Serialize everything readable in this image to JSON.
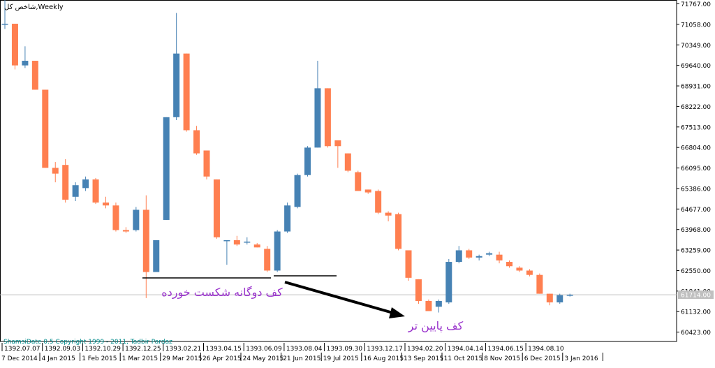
{
  "title": "شاخص کل,Weekly",
  "copyright": "ShamsiDate 0.5 Copyright 1999 - 2011, Tadbir Pardaz",
  "annotations": {
    "double_bottom": "کف دوگانه شکست خورده",
    "lower_bottom": "کف پایین تر"
  },
  "price_labels": [
    "71767.00",
    "71058.00",
    "70349.00",
    "69640.00",
    "68931.00",
    "68222.00",
    "67513.00",
    "66804.00",
    "66095.00",
    "65386.00",
    "64677.00",
    "63968.00",
    "63259.00",
    "62550.00",
    "61841.00",
    "61132.00",
    "60423.00"
  ],
  "current_price": "61714.00",
  "date_labels_top": [
    "1392.07.07",
    "1392.09.03",
    "1392.10.29",
    "1392.12.25",
    "1393.02.21",
    "1393.04.15",
    "1393.06.09",
    "1393.08.04",
    "1393.09.30",
    "1393.12.17",
    "1394.02.20",
    "1394.04.14",
    "1394.06.15",
    "1394.08.10"
  ],
  "date_labels_bottom": [
    "7 Dec 2014",
    "4 Jan 2015",
    "1 Feb 2015",
    "1 Mar 2015",
    "29 Mar 2015",
    "26 Apr 2015",
    "24 May 2015",
    "21 Jun 2015",
    "19 Jul 2015",
    "16 Aug 2015",
    "13 Sep 2015",
    "11 Oct 2015",
    "8 Nov 2015",
    "6 Dec 2015",
    "3 Jan 2016"
  ],
  "colors": {
    "up": "#4682B4",
    "down": "#FF7F50",
    "line": "#000000",
    "text_purple": "#9932CC",
    "copyright_teal": "#008B8B",
    "grid": "#c0c0c0"
  },
  "chart_data": {
    "type": "candlestick",
    "ylim": [
      60100,
      71900
    ],
    "candles": [
      {
        "o": 71080,
        "h": 71900,
        "l": 70900,
        "c": 71080
      },
      {
        "o": 71080,
        "h": 71080,
        "l": 69500,
        "c": 69640
      },
      {
        "o": 69640,
        "h": 70300,
        "l": 69550,
        "c": 69800
      },
      {
        "o": 69800,
        "h": 69800,
        "l": 68800,
        "c": 68800
      },
      {
        "o": 68800,
        "h": 68800,
        "l": 66100,
        "c": 66100
      },
      {
        "o": 66100,
        "h": 66300,
        "l": 65600,
        "c": 65900
      },
      {
        "o": 66200,
        "h": 66400,
        "l": 64900,
        "c": 65000
      },
      {
        "o": 65100,
        "h": 65600,
        "l": 64950,
        "c": 65500
      },
      {
        "o": 65400,
        "h": 65800,
        "l": 65300,
        "c": 65700
      },
      {
        "o": 65700,
        "h": 65750,
        "l": 64850,
        "c": 64900
      },
      {
        "o": 64900,
        "h": 65100,
        "l": 64700,
        "c": 64800
      },
      {
        "o": 64800,
        "h": 64900,
        "l": 63900,
        "c": 63950
      },
      {
        "o": 63950,
        "h": 64050,
        "l": 63850,
        "c": 63900
      },
      {
        "o": 63950,
        "h": 64750,
        "l": 63900,
        "c": 64650
      },
      {
        "o": 64650,
        "h": 65150,
        "l": 61600,
        "c": 62500
      },
      {
        "o": 62500,
        "h": 63600,
        "l": 62500,
        "c": 63600
      },
      {
        "o": 64300,
        "h": 67850,
        "l": 64300,
        "c": 67850
      },
      {
        "o": 67850,
        "h": 71450,
        "l": 67750,
        "c": 70050
      },
      {
        "o": 70050,
        "h": 70050,
        "l": 67350,
        "c": 67400
      },
      {
        "o": 67400,
        "h": 67550,
        "l": 66550,
        "c": 66600
      },
      {
        "o": 66700,
        "h": 66700,
        "l": 65700,
        "c": 65800
      },
      {
        "o": 65700,
        "h": 65700,
        "l": 63650,
        "c": 63700
      },
      {
        "o": 63600,
        "h": 63600,
        "l": 62750,
        "c": 63600
      },
      {
        "o": 63600,
        "h": 63750,
        "l": 63400,
        "c": 63450
      },
      {
        "o": 63550,
        "h": 63700,
        "l": 63450,
        "c": 63550
      },
      {
        "o": 63450,
        "h": 63500,
        "l": 63350,
        "c": 63350
      },
      {
        "o": 63300,
        "h": 63400,
        "l": 62500,
        "c": 62550
      },
      {
        "o": 62550,
        "h": 63950,
        "l": 62500,
        "c": 63900
      },
      {
        "o": 63900,
        "h": 64900,
        "l": 63850,
        "c": 64800
      },
      {
        "o": 64750,
        "h": 65900,
        "l": 64700,
        "c": 65850
      },
      {
        "o": 65850,
        "h": 66850,
        "l": 65800,
        "c": 66800
      },
      {
        "o": 66800,
        "h": 69800,
        "l": 66800,
        "c": 68850
      },
      {
        "o": 68850,
        "h": 68850,
        "l": 66800,
        "c": 66850
      },
      {
        "o": 67050,
        "h": 67050,
        "l": 66100,
        "c": 66850
      },
      {
        "o": 66600,
        "h": 66600,
        "l": 65950,
        "c": 66000
      },
      {
        "o": 65950,
        "h": 66000,
        "l": 65300,
        "c": 65300
      },
      {
        "o": 65350,
        "h": 65350,
        "l": 65200,
        "c": 65250
      },
      {
        "o": 65300,
        "h": 65350,
        "l": 64500,
        "c": 64550
      },
      {
        "o": 64550,
        "h": 64600,
        "l": 64250,
        "c": 64450
      },
      {
        "o": 64500,
        "h": 64550,
        "l": 63250,
        "c": 63300
      },
      {
        "o": 63250,
        "h": 63250,
        "l": 62200,
        "c": 62300
      },
      {
        "o": 62250,
        "h": 62250,
        "l": 61400,
        "c": 61500
      },
      {
        "o": 61500,
        "h": 61550,
        "l": 61200,
        "c": 61150
      },
      {
        "o": 61300,
        "h": 61550,
        "l": 61100,
        "c": 61500
      },
      {
        "o": 61450,
        "h": 62950,
        "l": 61400,
        "c": 62850
      },
      {
        "o": 62850,
        "h": 63400,
        "l": 62800,
        "c": 63250
      },
      {
        "o": 63250,
        "h": 63300,
        "l": 62950,
        "c": 63000
      },
      {
        "o": 63000,
        "h": 63100,
        "l": 62900,
        "c": 63050
      },
      {
        "o": 63100,
        "h": 63200,
        "l": 63050,
        "c": 63150
      },
      {
        "o": 63100,
        "h": 63200,
        "l": 62800,
        "c": 62900
      },
      {
        "o": 62850,
        "h": 62900,
        "l": 62650,
        "c": 62700
      },
      {
        "o": 62650,
        "h": 62700,
        "l": 62500,
        "c": 62550
      },
      {
        "o": 62550,
        "h": 62600,
        "l": 62350,
        "c": 62400
      },
      {
        "o": 62400,
        "h": 62450,
        "l": 61750,
        "c": 61750
      },
      {
        "o": 61750,
        "h": 61750,
        "l": 61350,
        "c": 61450
      },
      {
        "o": 61450,
        "h": 61750,
        "l": 61400,
        "c": 61700
      },
      {
        "o": 61700,
        "h": 61750,
        "l": 61650,
        "c": 61714
      }
    ]
  }
}
